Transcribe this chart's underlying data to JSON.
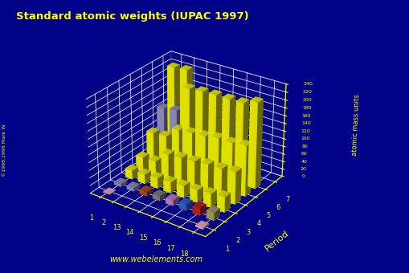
{
  "title": "Standard atomic weights (IUPAC 1997)",
  "zlabel": "atomic mass units",
  "xlabel_groups": [
    "1",
    "2",
    "13",
    "14",
    "15",
    "16",
    "17",
    "18"
  ],
  "period_label": "Period",
  "periods": [
    1,
    2,
    3,
    4,
    5,
    6,
    7
  ],
  "atomic_weights": {
    "1_1": 1.008,
    "1_18": 4.003,
    "2_1": 6.941,
    "2_2": 9.012,
    "2_13": 10.811,
    "2_14": 12.011,
    "2_15": 14.007,
    "2_16": 15.999,
    "2_17": 18.998,
    "2_18": 20.18,
    "3_1": 22.99,
    "3_2": 24.305,
    "3_13": 26.982,
    "3_14": 28.086,
    "3_15": 30.974,
    "3_16": 32.066,
    "3_17": 35.453,
    "3_18": 39.948,
    "4_1": 39.098,
    "4_2": 40.078,
    "4_13": 69.723,
    "4_14": 72.63,
    "4_15": 74.922,
    "4_16": 78.971,
    "4_17": 79.904,
    "4_18": 83.798,
    "5_1": 85.468,
    "5_2": 87.62,
    "5_13": 114.818,
    "5_14": 118.71,
    "5_15": 121.76,
    "5_16": 127.6,
    "5_17": 126.904,
    "5_18": 131.293,
    "6_1": 132.905,
    "6_2": 137.327,
    "6_13": 204.383,
    "6_14": 207.2,
    "6_15": 208.98,
    "6_16": 209.0,
    "6_17": 210.0,
    "6_18": 222.0,
    "7_1": 223.0,
    "7_2": 226.0
  },
  "bar_colors": {
    "1_1": "#ffbbcc",
    "1_18": "#ffbbcc",
    "2_1": "#9999cc",
    "2_2": "#9999cc",
    "2_13": "#bb5522",
    "2_14": "#888888",
    "2_15": "#cc88cc",
    "2_16": "#3366dd",
    "2_17": "#cc2222",
    "2_18": "#aaaa66",
    "3_1": "#ffff00",
    "3_2": "#ffff00",
    "3_13": "#ffff00",
    "3_14": "#ffff00",
    "3_15": "#ffff00",
    "3_16": "#ffff00",
    "3_17": "#ffff00",
    "3_18": "#ffff00",
    "4_1": "#ffff00",
    "4_2": "#ffff00",
    "4_13": "#ffff00",
    "4_14": "#ffff00",
    "4_15": "#ffff00",
    "4_16": "#ffff00",
    "4_17": "#ffff00",
    "4_18": "#ffff00",
    "5_1": "#ffff00",
    "5_2": "#ffff00",
    "5_13": "#ffff00",
    "5_14": "#ffff00",
    "5_15": "#ffff00",
    "5_16": "#ffff00",
    "5_17": "#ffff00",
    "5_18": "#ffff00",
    "6_1": "#9999cc",
    "6_2": "#9999cc",
    "6_13": "#ffff00",
    "6_14": "#ffff00",
    "6_15": "#ffff00",
    "6_16": "#ffff00",
    "6_17": "#ffff00",
    "6_18": "#ffff00",
    "7_1": "#ffff00",
    "7_2": "#ffff00"
  },
  "background_color": "#000088",
  "grid_color": "#ffffff",
  "text_color": "#ffff00",
  "title_color": "#ffff00",
  "watermark": "www.webelements.com",
  "copyright": "©1998,1999 Mark W",
  "ztick_vals": [
    0,
    20,
    40,
    60,
    80,
    100,
    120,
    140,
    160,
    180,
    200,
    220,
    240
  ],
  "zlim": [
    0,
    240
  ],
  "elev": 28,
  "azim": -55
}
